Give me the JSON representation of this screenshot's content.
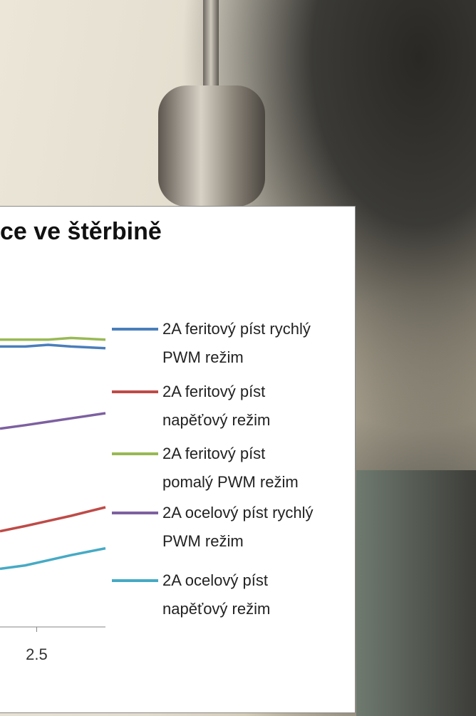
{
  "chart_data": {
    "type": "line",
    "title": "ce ve štěrbině",
    "x": [
      2.34,
      2.45,
      2.55,
      2.65,
      2.8
    ],
    "xlim": [
      2.34,
      2.8
    ],
    "xticks": [
      2.5
    ],
    "ylim": [
      0,
      100
    ],
    "series": [
      {
        "name": "2A feritový píst rychlý PWM režim",
        "color": "#4a7ebb",
        "values": [
          82,
          82,
          82.5,
          82,
          81.5
        ]
      },
      {
        "name": "2A feritový píst napěťový režim",
        "color": "#be4b48",
        "values": [
          28,
          29.5,
          31,
          32.5,
          35
        ]
      },
      {
        "name": "2A feritový píst pomalý PWM režim",
        "color": "#98b954",
        "values": [
          84,
          84,
          84,
          84.5,
          84
        ]
      },
      {
        "name": "2A ocelový píst rychlý PWM režim",
        "color": "#7d60a0",
        "values": [
          58,
          59,
          60,
          61,
          62.5
        ]
      },
      {
        "name": "2A ocelový píst napěťový režim",
        "color": "#46aac5",
        "values": [
          17,
          18,
          19.5,
          21,
          23
        ]
      }
    ]
  }
}
